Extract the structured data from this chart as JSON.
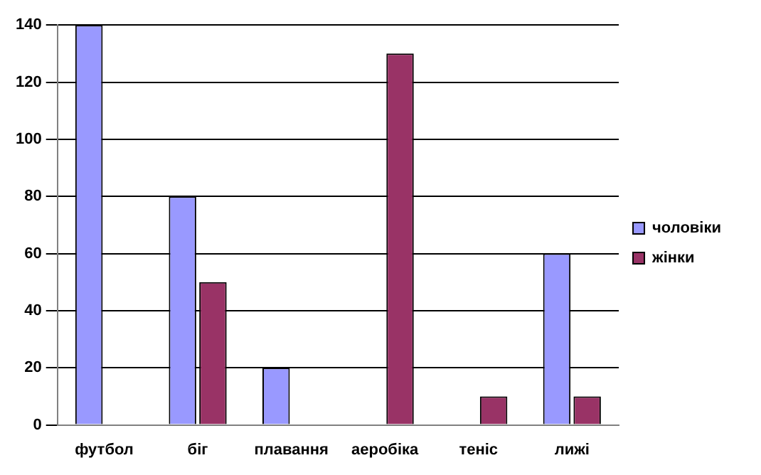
{
  "chart_data": {
    "type": "bar",
    "categories": [
      "футбол",
      "біг",
      "плавання",
      "аеробіка",
      "теніс",
      "лижі"
    ],
    "series": [
      {
        "name": "чоловіки",
        "color": "#9999ff",
        "values": [
          140,
          80,
          20,
          0,
          0,
          60
        ]
      },
      {
        "name": "жінки",
        "color": "#993366",
        "values": [
          0,
          50,
          0,
          130,
          10,
          10
        ]
      }
    ],
    "ylim": [
      0,
      140
    ],
    "yticks": [
      0,
      20,
      40,
      60,
      80,
      100,
      120,
      140
    ],
    "grid": "y",
    "legend": "right"
  }
}
